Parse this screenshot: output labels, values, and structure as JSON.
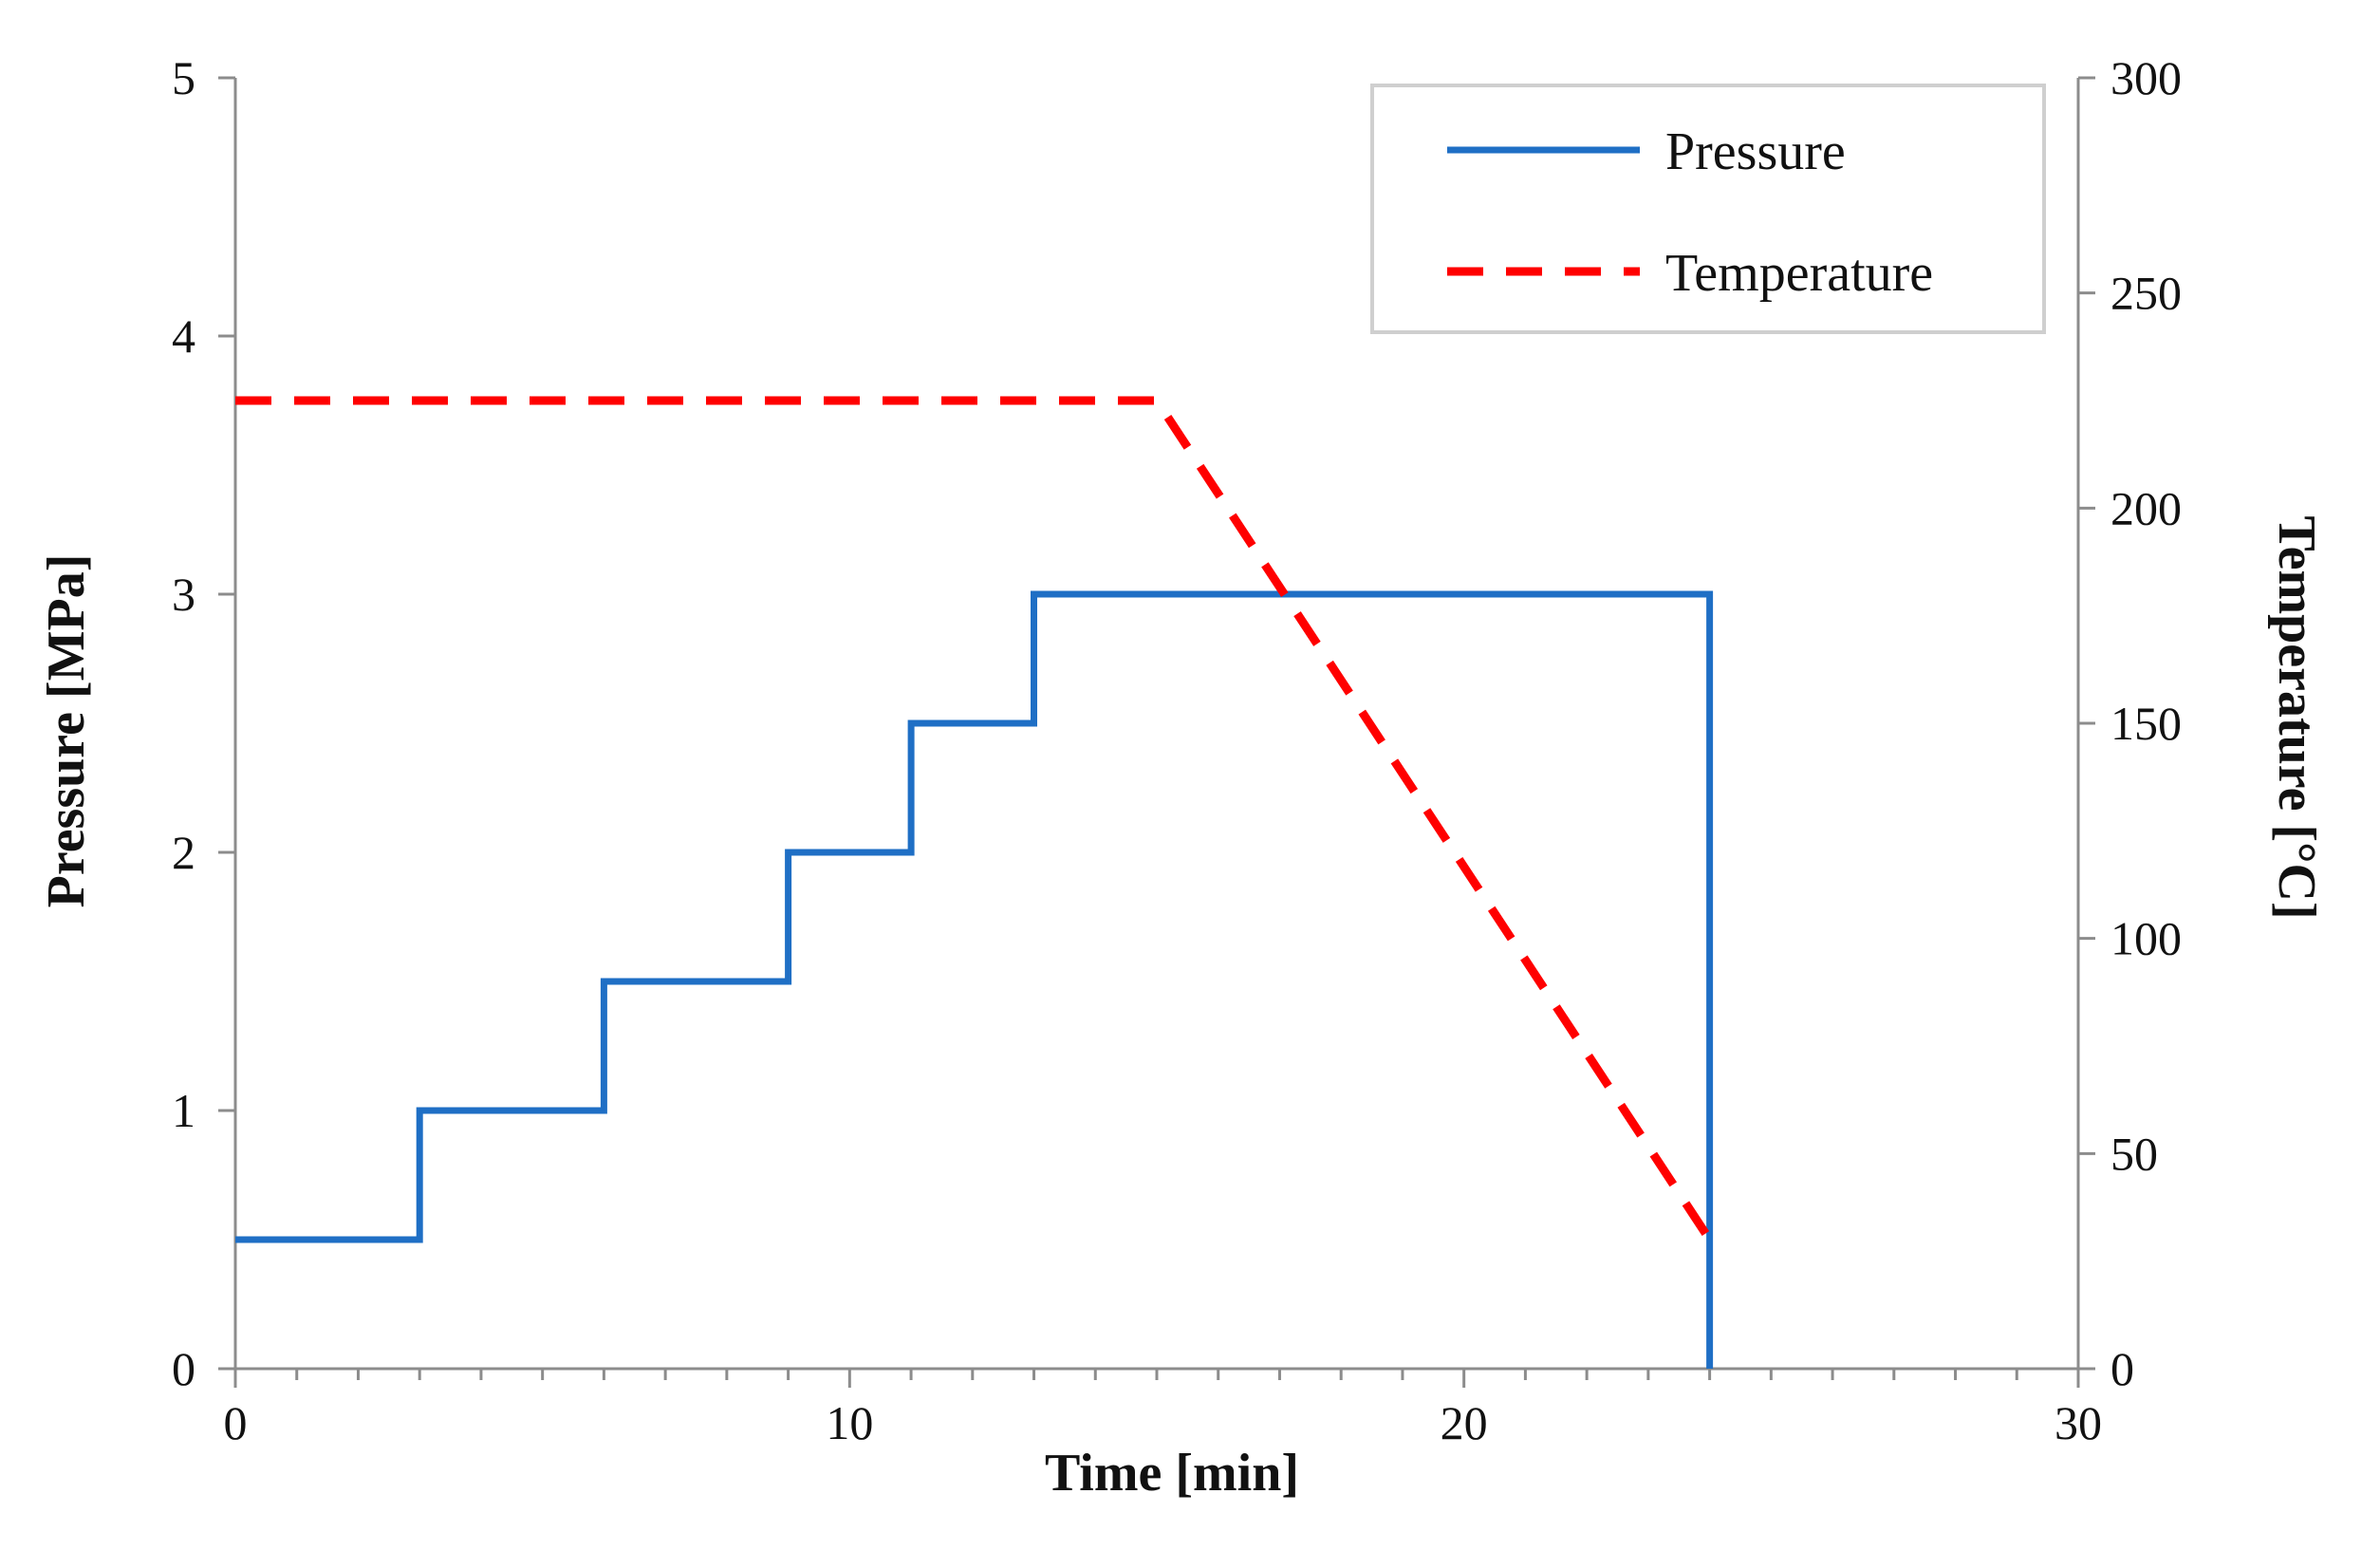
{
  "chart_data": {
    "type": "line",
    "title": "",
    "xlabel": "Time [min]",
    "ylabel": "Pressure [MPa]",
    "y2label": "Temperature [°C]",
    "xlim": [
      0,
      30
    ],
    "ylim": [
      0,
      5
    ],
    "y2lim": [
      0,
      300
    ],
    "x_ticks": [
      "0",
      "10",
      "20",
      "30"
    ],
    "y_ticks": [
      "0",
      "1",
      "2",
      "3",
      "4",
      "5"
    ],
    "y2_ticks": [
      "0",
      "50",
      "100",
      "150",
      "200",
      "250",
      "300"
    ],
    "grid": false,
    "legend_position": "top-right",
    "series": [
      {
        "name": "Pressure",
        "axis": "left",
        "color": "#1f6fc5",
        "style": "solid",
        "step": true,
        "x": [
          0,
          3,
          3,
          6,
          6,
          9,
          9,
          11,
          11,
          13,
          13,
          24,
          24
        ],
        "y": [
          0.5,
          0.5,
          1.0,
          1.0,
          1.5,
          1.5,
          2.0,
          2.0,
          2.5,
          2.5,
          3.0,
          3.0,
          0
        ]
      },
      {
        "name": "Temperature",
        "axis": "right",
        "color": "#ff0000",
        "style": "dashed",
        "step": false,
        "x": [
          0,
          15,
          24
        ],
        "y": [
          225,
          225,
          30
        ]
      }
    ]
  }
}
